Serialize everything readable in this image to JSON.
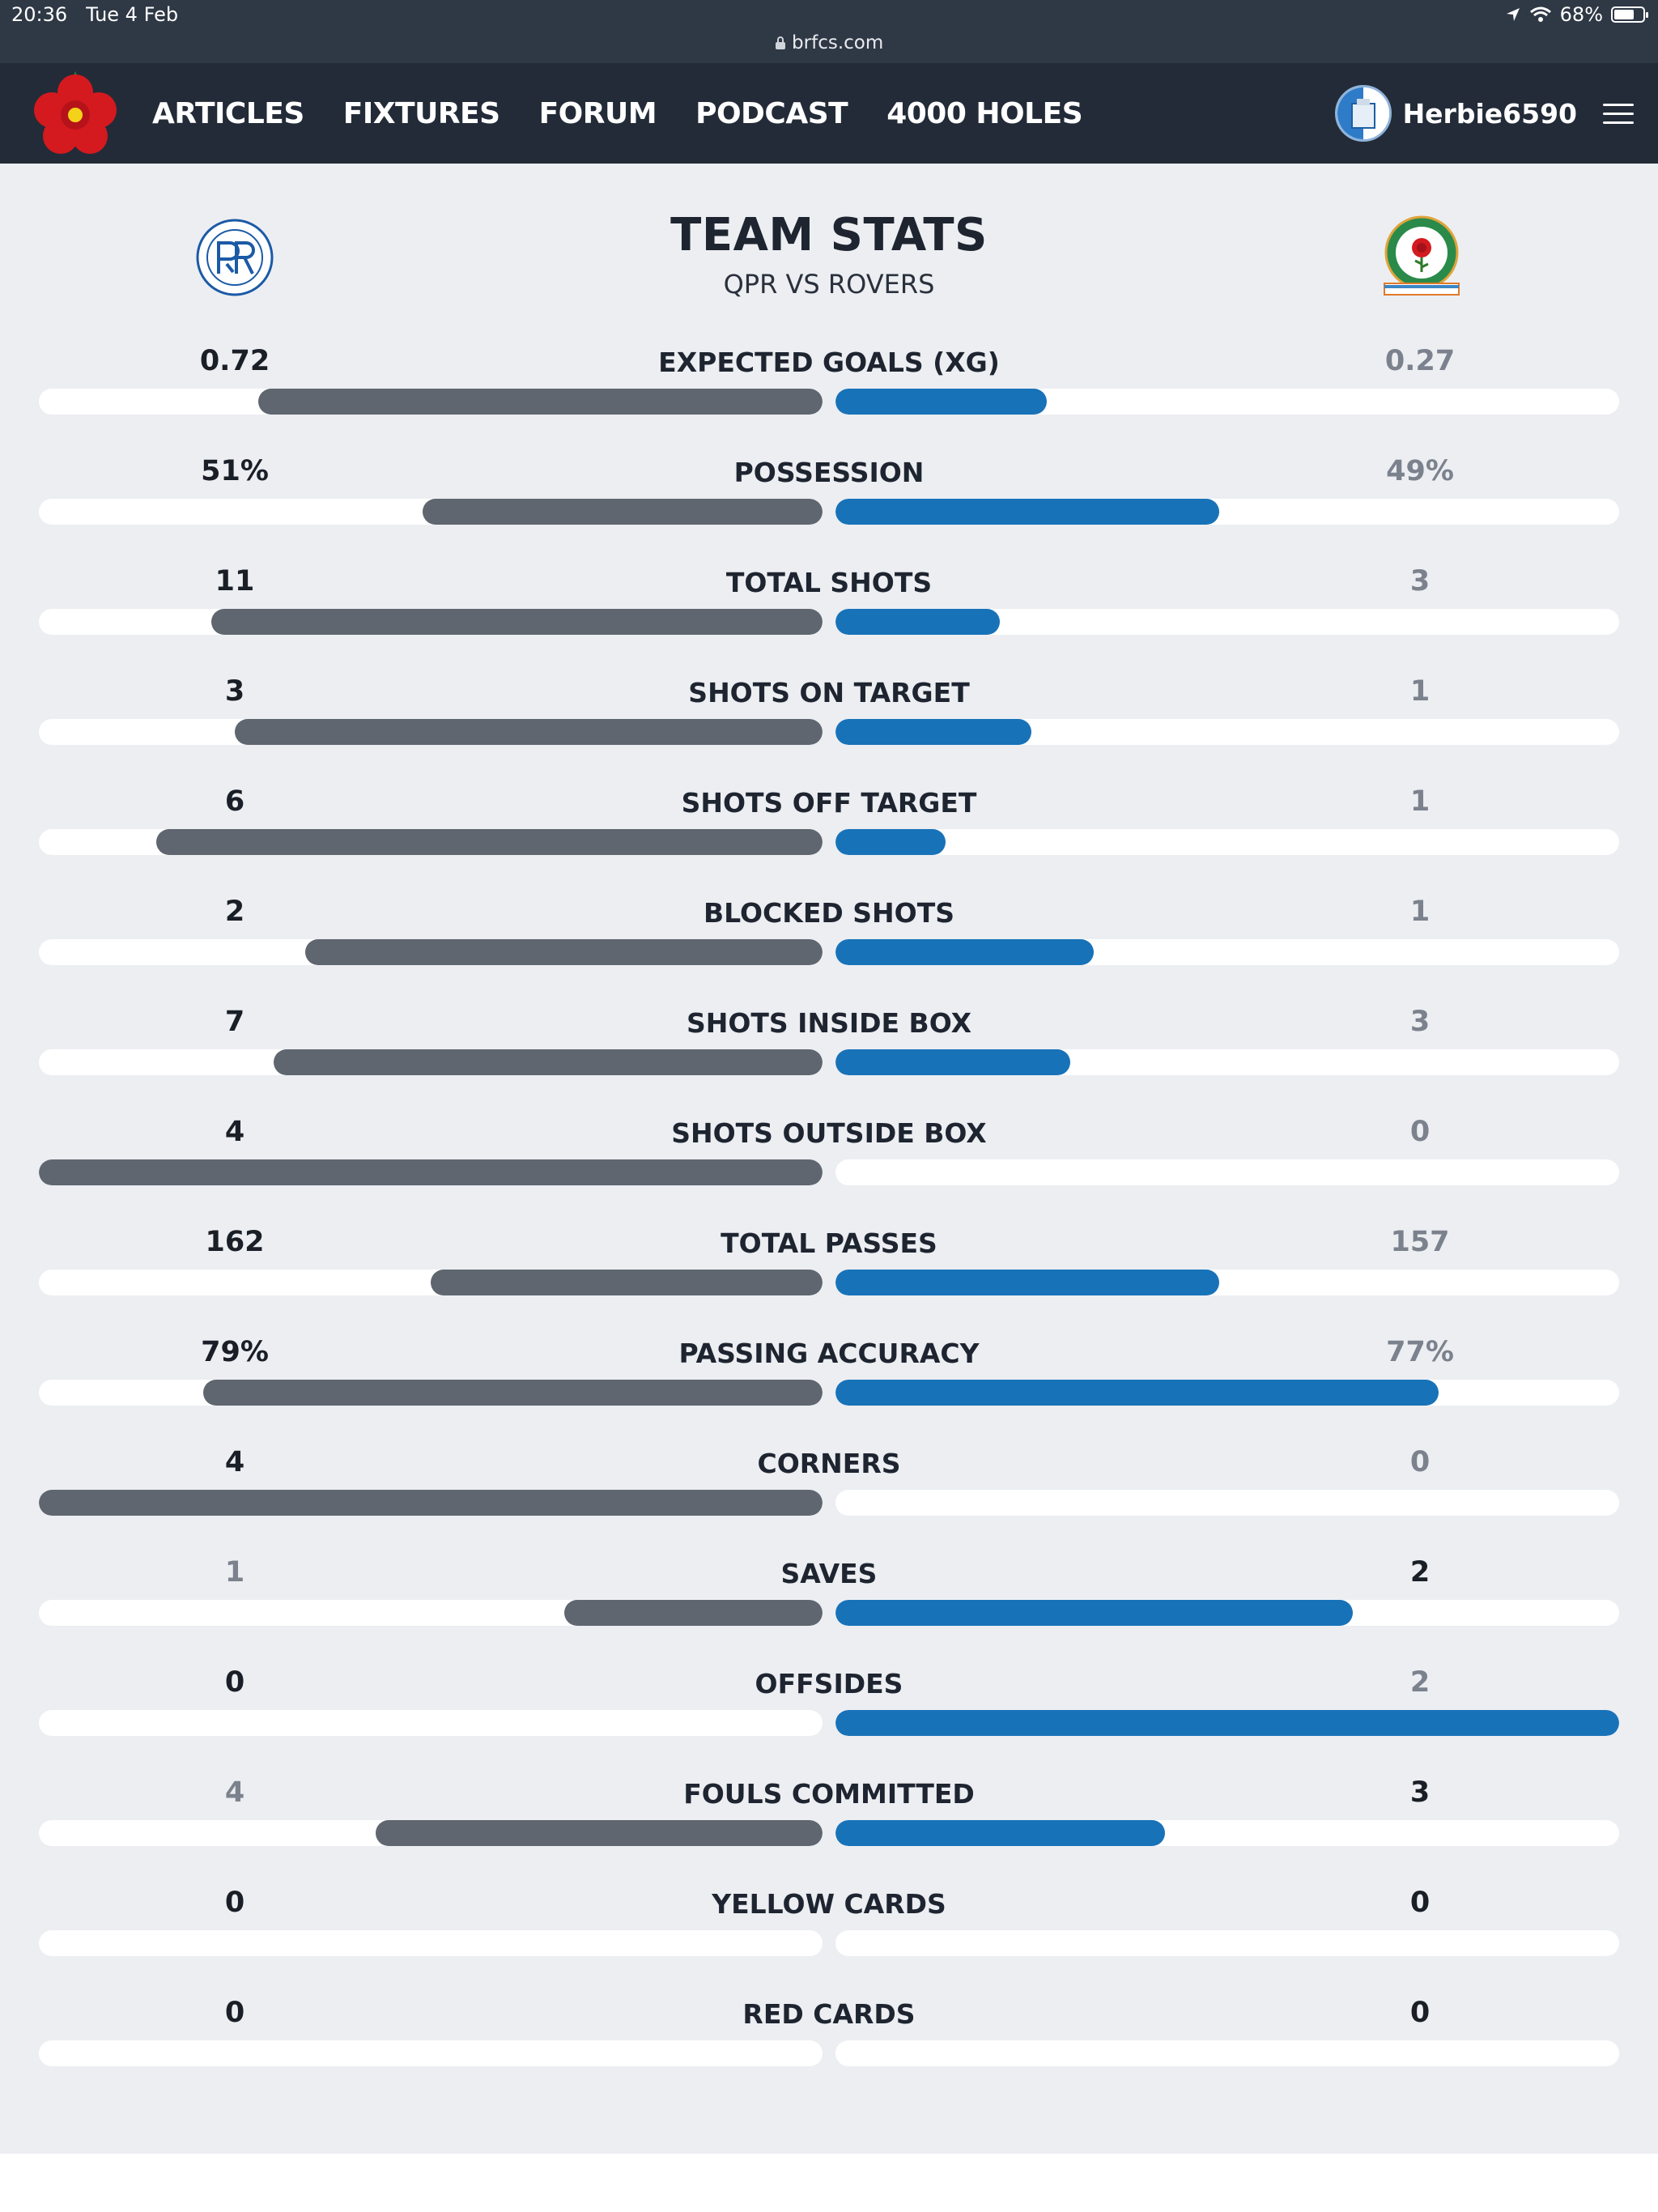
{
  "status_bar": {
    "time": "20:36",
    "date": "Tue 4 Feb",
    "battery": "68%",
    "url": "brfcs.com"
  },
  "nav": {
    "links": [
      "ARTICLES",
      "FIXTURES",
      "FORUM",
      "PODCAST",
      "4000 HOLES"
    ],
    "username": "Herbie6590",
    "logo_icon": "red-rose-icon",
    "menu_icon": "hamburger-menu-icon"
  },
  "header": {
    "title": "TEAM STATS",
    "subtitle": "QPR VS ROVERS",
    "home_badge": "qpr-crest-icon",
    "away_badge": "blackburn-rovers-crest-icon"
  },
  "colors": {
    "home_bar": "#5f6670",
    "away_bar": "#1872b8",
    "nav_bg": "#232b38",
    "page_bg": "#eceef2"
  },
  "stats": [
    {
      "label": "EXPECTED GOALS (XG)",
      "home": "0.72",
      "away": "0.27",
      "home_frac": 0.72,
      "away_frac": 0.27
    },
    {
      "label": "POSSESSION",
      "home": "51%",
      "away": "49%",
      "home_frac": 0.51,
      "away_frac": 0.49
    },
    {
      "label": "TOTAL SHOTS",
      "home": "11",
      "away": "3",
      "home_frac": 0.78,
      "away_frac": 0.21
    },
    {
      "label": "SHOTS ON TARGET",
      "home": "3",
      "away": "1",
      "home_frac": 0.75,
      "away_frac": 0.25
    },
    {
      "label": "SHOTS OFF TARGET",
      "home": "6",
      "away": "1",
      "home_frac": 0.85,
      "away_frac": 0.14
    },
    {
      "label": "BLOCKED SHOTS",
      "home": "2",
      "away": "1",
      "home_frac": 0.66,
      "away_frac": 0.33
    },
    {
      "label": "SHOTS INSIDE BOX",
      "home": "7",
      "away": "3",
      "home_frac": 0.7,
      "away_frac": 0.3
    },
    {
      "label": "SHOTS OUTSIDE BOX",
      "home": "4",
      "away": "0",
      "home_frac": 1.0,
      "away_frac": 0.0
    },
    {
      "label": "TOTAL PASSES",
      "home": "162",
      "away": "157",
      "home_frac": 0.5,
      "away_frac": 0.49
    },
    {
      "label": "PASSING ACCURACY",
      "home": "79%",
      "away": "77%",
      "home_frac": 0.79,
      "away_frac": 0.77
    },
    {
      "label": "CORNERS",
      "home": "4",
      "away": "0",
      "home_frac": 1.0,
      "away_frac": 0.0
    },
    {
      "label": "SAVES",
      "home": "1",
      "away": "2",
      "home_frac": 0.33,
      "away_frac": 0.66
    },
    {
      "label": "OFFSIDES",
      "home": "0",
      "away": "2",
      "home_frac": 0.0,
      "away_frac": 1.0
    },
    {
      "label": "FOULS COMMITTED",
      "home": "4",
      "away": "3",
      "home_frac": 0.57,
      "away_frac": 0.42
    },
    {
      "label": "YELLOW CARDS",
      "home": "0",
      "away": "0",
      "home_frac": 0.0,
      "away_frac": 0.0
    },
    {
      "label": "RED CARDS",
      "home": "0",
      "away": "0",
      "home_frac": 0.0,
      "away_frac": 0.0
    }
  ],
  "emphasis": [
    "home",
    "home",
    "home",
    "home",
    "home",
    "home",
    "home",
    "home",
    "home",
    "home",
    "home",
    "away",
    "home",
    "away",
    "both",
    "both"
  ]
}
